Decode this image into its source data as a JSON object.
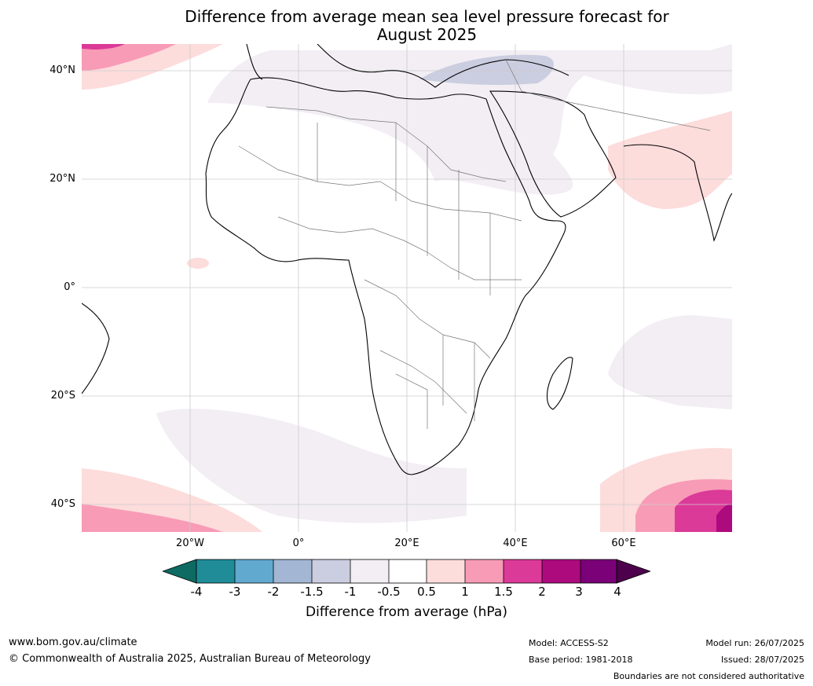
{
  "title": {
    "line1": "Difference from average mean sea level pressure forecast for",
    "line2": "August 2025"
  },
  "map": {
    "type": "map",
    "region": "Africa",
    "grid": true,
    "lat_labels": [
      "40°N",
      "20°N",
      "0°",
      "20°S",
      "40°S"
    ],
    "lon_labels": [
      "20°W",
      "0°",
      "20°E",
      "40°E",
      "60°E"
    ]
  },
  "colorbar": {
    "ticks": [
      "-4",
      "-3",
      "-2",
      "-1.5",
      "-1",
      "-0.5",
      "0.5",
      "1",
      "1.5",
      "2",
      "3",
      "4"
    ],
    "colors": [
      "#0e6b63",
      "#1f8c98",
      "#62a9cf",
      "#a3b6d3",
      "#cbcde0",
      "#f2eef4",
      "#ffffff",
      "#fddcdc",
      "#f89bb6",
      "#db3a98",
      "#ad0a7e",
      "#7a0177",
      "#4d004b"
    ],
    "label": "Difference from average (hPa)"
  },
  "footer": {
    "website": "www.bom.gov.au/climate",
    "copyright": "© Commonwealth of Australia 2025, Australian Bureau of Meteorology",
    "model": "Model: ACCESS-S2",
    "base_period": "Base period: 1981-2018",
    "model_run": "Model run: 26/07/2025",
    "issued": "Issued: 28/07/2025",
    "disclaimer": "Boundaries are not considered authoritative"
  }
}
